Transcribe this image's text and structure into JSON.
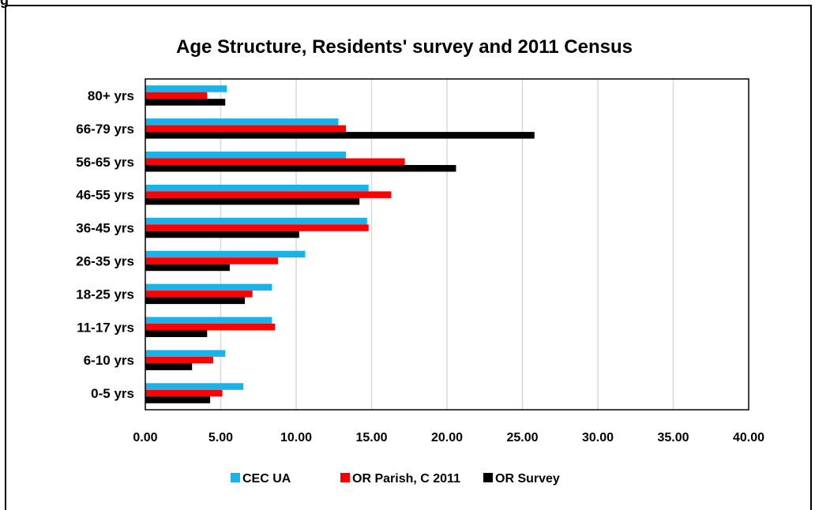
{
  "corner_text": "g",
  "colors": {
    "series": [
      "#1ab2e8",
      "#ff0000",
      "#000000"
    ],
    "grid": "#d9d9d9"
  },
  "chart_data": {
    "type": "bar",
    "orientation": "horizontal",
    "title": "Age Structure, Residents' survey and 2011 Census",
    "categories": [
      "0-5 yrs",
      "6-10 yrs",
      "11-17 yrs",
      "18-25 yrs",
      "26-35 yrs",
      "36-45 yrs",
      "46-55 yrs",
      "56-65 yrs",
      "66-79 yrs",
      "80+ yrs"
    ],
    "series": [
      {
        "name": "CEC UA",
        "values": [
          6.5,
          5.3,
          8.4,
          8.4,
          10.6,
          14.7,
          14.8,
          13.3,
          12.8,
          5.4
        ]
      },
      {
        "name": "OR Parish, C 2011",
        "values": [
          5.1,
          4.5,
          8.6,
          7.1,
          8.8,
          14.8,
          16.3,
          17.2,
          13.3,
          4.1
        ]
      },
      {
        "name": "OR Survey",
        "values": [
          4.3,
          3.1,
          4.1,
          6.6,
          5.6,
          10.2,
          14.2,
          20.6,
          25.8,
          5.3
        ]
      }
    ],
    "xlim": [
      0,
      40
    ],
    "xticks": [
      "0.00",
      "5.00",
      "10.00",
      "15.00",
      "20.00",
      "25.00",
      "30.00",
      "35.00",
      "40.00"
    ],
    "grid": true,
    "legend_position": "bottom"
  }
}
